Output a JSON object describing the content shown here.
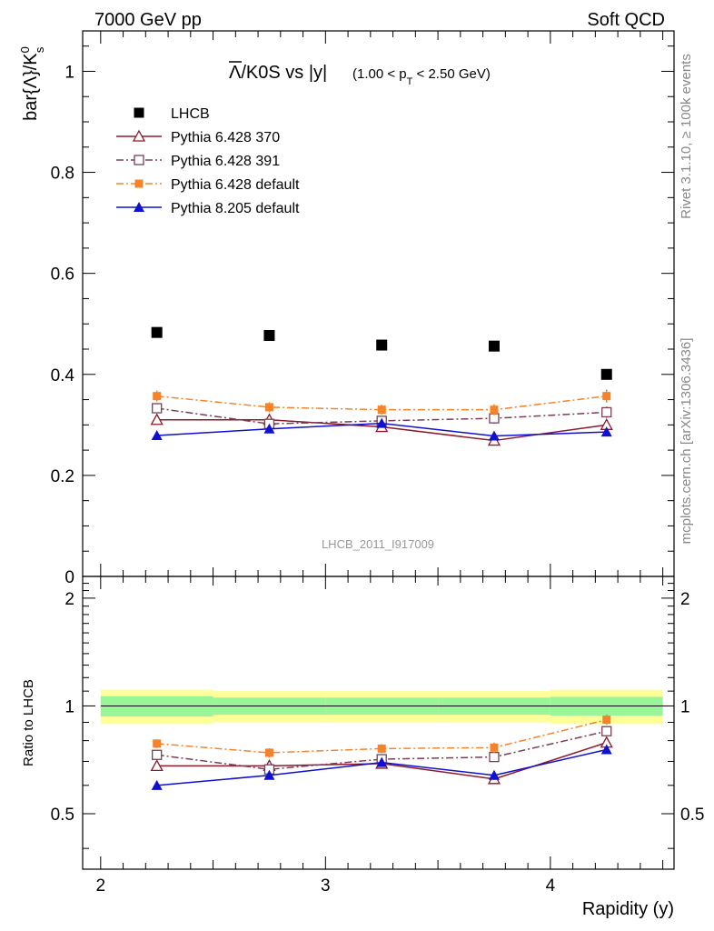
{
  "header": {
    "left": "7000 GeV pp",
    "right": "Soft QCD"
  },
  "title": {
    "main": "Λ/K0S vs |y|",
    "overline_symbol": "Λ",
    "main_rest": "/K0S vs |y|",
    "range_prefix": "(1.00 < p",
    "range_sub": "T",
    "range_suffix": " < 2.50 GeV)"
  },
  "side_labels": {
    "rivet": "Rivet 3.1.10, ≥ 100k events",
    "mcplots": "mcplots.cern.ch [arXiv:1306.3436]"
  },
  "watermark": "LHCB_2011_I917009",
  "chart_data": [
    {
      "type": "scatter",
      "panel": "main",
      "ylabel": "bar{Λ}/K⁰ₛ",
      "ylabel_base": "bar{Λ}/K",
      "ylabel_sup": "0",
      "ylabel_sub": "s",
      "xlim": [
        1.92,
        4.55
      ],
      "ylim": [
        0.0,
        1.08
      ],
      "yticks": [
        0,
        0.2,
        0.4,
        0.6,
        0.8,
        1
      ],
      "ytick_labels": [
        "0",
        "0.2",
        "0.4",
        "0.6",
        "0.8",
        "1"
      ],
      "x": [
        2.25,
        2.75,
        3.25,
        3.75,
        4.25
      ],
      "legend_position": "top-left",
      "series": [
        {
          "name": "LHCB",
          "marker": "square-filled",
          "color": "#000000",
          "line": "none",
          "values": [
            0.483,
            0.477,
            0.458,
            0.456,
            0.4
          ],
          "errors": [
            0.004,
            0.004,
            0.004,
            0.004,
            0.004
          ]
        },
        {
          "name": "Pythia 6.428 370",
          "marker": "triangle-open",
          "color": "#8b1a2b",
          "line": "solid",
          "values": [
            0.31,
            0.31,
            0.296,
            0.269,
            0.3
          ],
          "errors": [
            0.008,
            0.008,
            0.008,
            0.008,
            0.009
          ]
        },
        {
          "name": "Pythia 6.428 391",
          "marker": "square-open",
          "color": "#7b3f55",
          "line": "dashdot",
          "values": [
            0.333,
            0.302,
            0.308,
            0.313,
            0.325
          ],
          "errors": [
            0.01,
            0.009,
            0.009,
            0.01,
            0.011
          ]
        },
        {
          "name": "Pythia 6.428 default",
          "marker": "square-filled-small",
          "color": "#f5832a",
          "line": "dashdot",
          "values": [
            0.357,
            0.335,
            0.33,
            0.33,
            0.357
          ],
          "errors": [
            0.011,
            0.01,
            0.01,
            0.011,
            0.013
          ]
        },
        {
          "name": "Pythia 8.205 default",
          "marker": "triangle-filled",
          "color": "#1010d0",
          "line": "solid",
          "values": [
            0.279,
            0.292,
            0.303,
            0.278,
            0.286
          ],
          "errors": [
            0.006,
            0.006,
            0.006,
            0.007,
            0.008
          ]
        }
      ]
    },
    {
      "type": "scatter",
      "panel": "ratio",
      "xlabel": "Rapidity (y)",
      "ylabel": "Ratio to LHCB",
      "xlim": [
        1.92,
        4.55
      ],
      "ylim": [
        0.35,
        2.3
      ],
      "xticks": [
        2,
        3,
        4
      ],
      "xtick_labels": [
        "2",
        "3",
        "4"
      ],
      "yticks": [
        0.5,
        1,
        2
      ],
      "ytick_labels": [
        "0.5",
        "1",
        "2"
      ],
      "x": [
        2.25,
        2.75,
        3.25,
        3.75,
        4.25
      ],
      "reference_bands": {
        "bins": [
          [
            2.0,
            2.5
          ],
          [
            2.5,
            3.0
          ],
          [
            3.0,
            3.5
          ],
          [
            3.5,
            4.0
          ],
          [
            4.0,
            4.5
          ]
        ],
        "inner": [
          0.065,
          0.055,
          0.055,
          0.055,
          0.06
        ],
        "outer": [
          0.11,
          0.1,
          0.1,
          0.1,
          0.11
        ],
        "inner_color": "#98f598",
        "outer_color": "#ffff99"
      },
      "series": [
        {
          "name": "Pythia 6.428 370",
          "color": "#8b1a2b",
          "values": [
            0.68,
            0.68,
            0.69,
            0.625,
            0.79
          ],
          "errors": [
            0.018,
            0.018,
            0.018,
            0.02,
            0.022
          ]
        },
        {
          "name": "Pythia 6.428 391",
          "color": "#7b3f55",
          "values": [
            0.73,
            0.665,
            0.71,
            0.72,
            0.85
          ],
          "errors": [
            0.02,
            0.02,
            0.02,
            0.022,
            0.025
          ]
        },
        {
          "name": "Pythia 6.428 default",
          "color": "#f5832a",
          "values": [
            0.785,
            0.74,
            0.76,
            0.765,
            0.915
          ],
          "errors": [
            0.022,
            0.022,
            0.022,
            0.025,
            0.03
          ]
        },
        {
          "name": "Pythia 8.205 default",
          "color": "#1010d0",
          "values": [
            0.6,
            0.64,
            0.695,
            0.64,
            0.755
          ],
          "errors": [
            0.015,
            0.015,
            0.015,
            0.018,
            0.02
          ]
        }
      ]
    }
  ]
}
